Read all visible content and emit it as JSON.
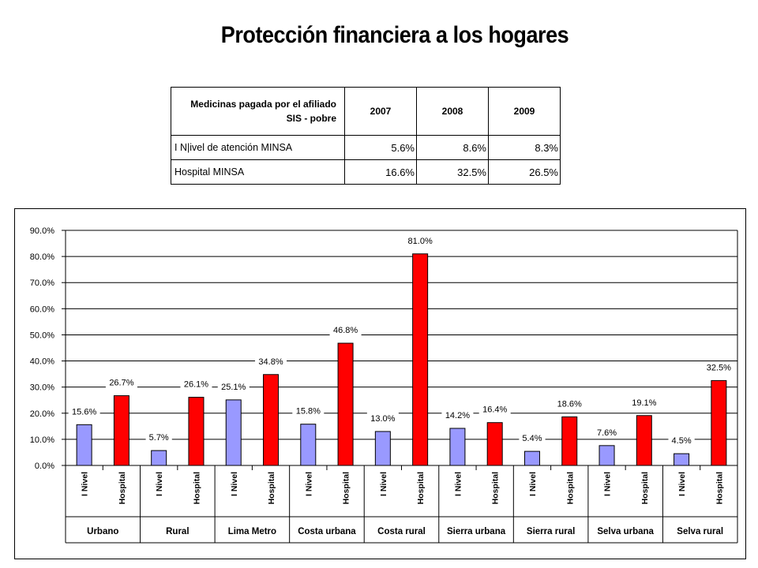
{
  "title": "Protección financiera a los hogares",
  "table": {
    "header": [
      "Medicinas pagada por el afiliado SIS - pobre",
      "2007",
      "2008",
      "2009"
    ],
    "rows": [
      {
        "label": "I N|ivel de atención MINSA",
        "values": [
          "5.6%",
          "8.6%",
          "8.3%"
        ]
      },
      {
        "label": "Hospital MINSA",
        "values": [
          "16.6%",
          "32.5%",
          "26.5%"
        ]
      }
    ]
  },
  "chart_data": {
    "type": "bar",
    "groups": [
      "Urbano",
      "Rural",
      "Lima Metro",
      "Costa urbana",
      "Costa rural",
      "Sierra urbana",
      "Sierra rural",
      "Selva urbana",
      "Selva rural"
    ],
    "sub_categories": [
      "I Nivel",
      "Hospital"
    ],
    "series": [
      {
        "values": [
          15.6,
          5.7,
          25.1,
          15.8,
          13.0,
          14.2,
          5.4,
          7.6,
          4.5
        ],
        "color": "#9999ff"
      },
      {
        "values": [
          26.7,
          26.1,
          34.8,
          46.8,
          81.0,
          16.4,
          18.6,
          19.1,
          32.5
        ],
        "color": "#ff0000"
      }
    ],
    "data_labels": [
      [
        "15.6%",
        "5.7%",
        "25.1%",
        "15.8%",
        "13.0%",
        "14.2%",
        "5.4%",
        "7.6%",
        "4.5%"
      ],
      [
        "26.7%",
        "26.1%",
        "34.8%",
        "46.8%",
        "81.0%",
        "16.4%",
        "18.6%",
        "19.1%",
        "32.5%"
      ]
    ],
    "ylim": [
      0,
      90
    ],
    "yticks": [
      "0.0%",
      "10.0%",
      "20.0%",
      "30.0%",
      "40.0%",
      "50.0%",
      "60.0%",
      "70.0%",
      "80.0%",
      "90.0%"
    ],
    "grid": true,
    "legend": "none"
  }
}
